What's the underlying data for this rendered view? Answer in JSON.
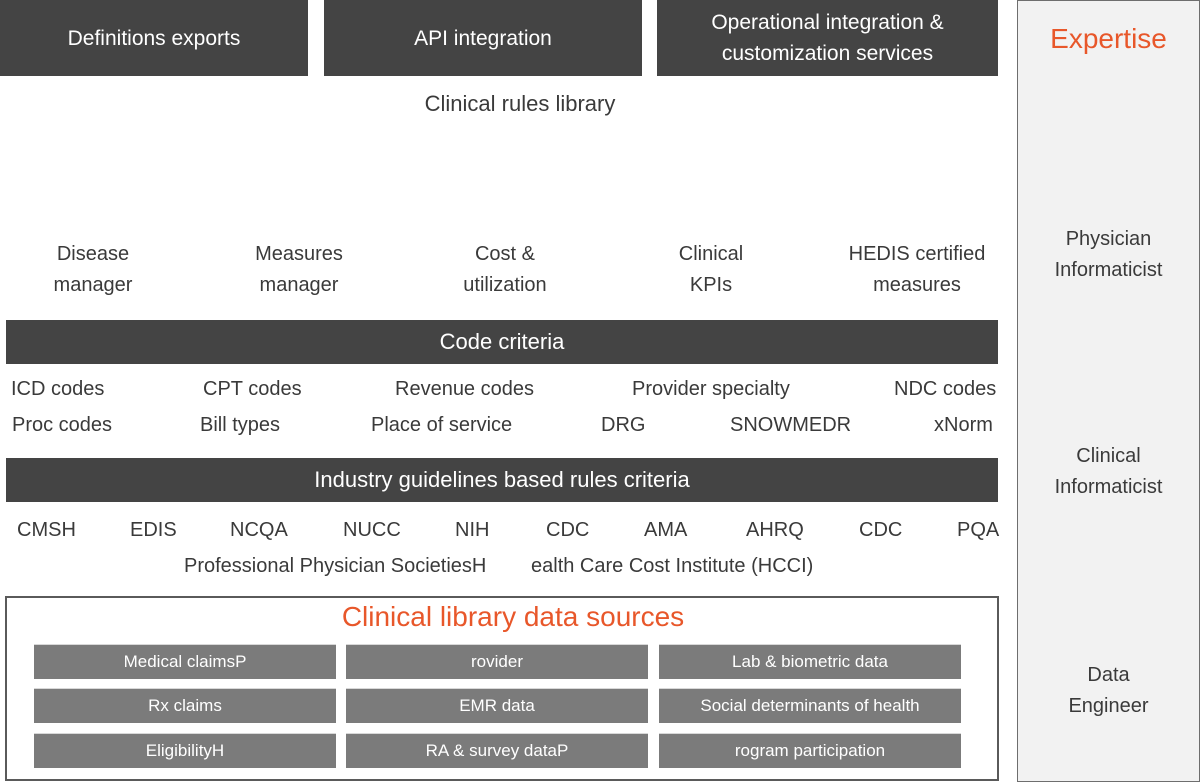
{
  "top_boxes": [
    "Definitions exports",
    "API integration",
    "Operational integration & customization services"
  ],
  "rules_library_title": "Clinical rules library",
  "modules": [
    [
      "Disease",
      "manager"
    ],
    [
      "Measures",
      "manager"
    ],
    [
      "Cost &",
      "utilization"
    ],
    [
      "Clinical",
      "KPIs"
    ],
    [
      "HEDIS certified",
      "measures"
    ]
  ],
  "code_criteria": {
    "title": "Code criteria",
    "row1": [
      "ICD codes",
      "CPT codes",
      "Revenue codes",
      "Provider specialty",
      "NDC codes"
    ],
    "row2": [
      "Proc codes",
      "Bill types",
      "Place of service",
      "DRG",
      "SNOWMEDR",
      "xNorm"
    ]
  },
  "industry": {
    "title": "Industry guidelines based rules criteria",
    "row1": [
      "CMSH",
      "EDIS",
      "NCQA",
      "NUCC",
      "NIH",
      "CDC",
      "AMA",
      "AHRQ",
      "CDC",
      "PQA"
    ],
    "row2": [
      "Professional Physician SocietiesH",
      "ealth Care Cost Institute (HCCI)"
    ]
  },
  "sources": {
    "title": "Clinical library data sources",
    "cells": [
      [
        "Medical claimsP",
        "rovider",
        "Lab & biometric data"
      ],
      [
        "Rx claims",
        "EMR data",
        "Social determinants of health"
      ],
      [
        "EligibilityH",
        "RA & survey dataP",
        "rogram participation"
      ]
    ]
  },
  "expertise": {
    "title": "Expertise",
    "roles": [
      [
        "Physician",
        "Informaticist"
      ],
      [
        "Clinical",
        "Informaticist"
      ],
      [
        "Data",
        "Engineer"
      ]
    ]
  },
  "colors": {
    "dark_bar": "#444444",
    "accent": "#e8572a",
    "cell_gray": "#7b7b7b",
    "panel_bg": "#f2f2f2"
  }
}
